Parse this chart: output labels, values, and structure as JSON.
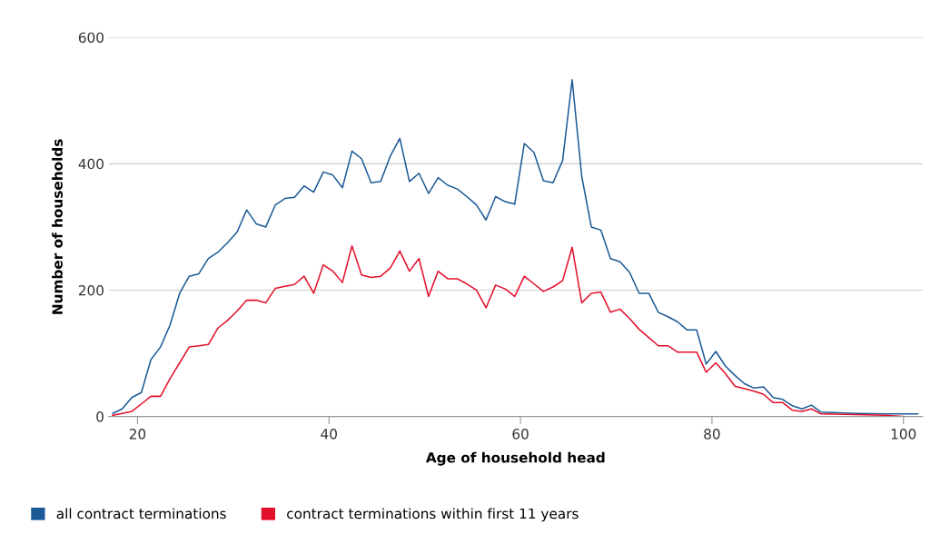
{
  "chart_data": {
    "type": "line",
    "xlabel": "Age of household head",
    "ylabel": "Number of households",
    "xlim": [
      17,
      102
    ],
    "xticks": [
      20,
      40,
      60,
      80,
      100
    ],
    "ylim": [
      0,
      600
    ],
    "yticks": [
      0,
      200,
      400,
      600
    ],
    "grid": "y",
    "legend": "bottom left",
    "marker": "none",
    "line_style": "solid",
    "series": [
      {
        "name": "all contract terminations",
        "color": "#1a5a96",
        "x": [
          17.4,
          18.4,
          19.4,
          20.4,
          21.4,
          22.4,
          23.4,
          24.4,
          25.4,
          26.4,
          27.4,
          28.4,
          29.4,
          30.4,
          31.4,
          32.4,
          33.4,
          34.4,
          35.4,
          36.4,
          37.4,
          38.4,
          39.4,
          40.4,
          41.4,
          42.4,
          43.4,
          44.4,
          45.4,
          46.4,
          47.4,
          48.4,
          49.4,
          50.4,
          51.4,
          52.4,
          53.4,
          54.4,
          55.4,
          56.4,
          57.4,
          58.4,
          59.4,
          60.4,
          61.4,
          62.4,
          63.4,
          64.4,
          65.4,
          66.4,
          67.4,
          68.4,
          69.4,
          70.4,
          71.4,
          72.4,
          73.4,
          74.4,
          75.4,
          76.4,
          77.4,
          78.4,
          79.4,
          80.4,
          81.4,
          82.4,
          83.4,
          84.4,
          85.4,
          86.4,
          87.4,
          88.4,
          89.4,
          90.4,
          91.4,
          95,
          98,
          101.5
        ],
        "values": [
          5,
          12,
          30,
          38,
          90,
          110,
          145,
          195,
          222,
          226,
          250,
          260,
          275,
          292,
          327,
          305,
          300,
          335,
          345,
          347,
          365,
          355,
          387,
          382,
          362,
          420,
          408,
          370,
          372,
          412,
          440,
          372,
          385,
          353,
          378,
          366,
          360,
          348,
          335,
          311,
          348,
          340,
          336,
          432,
          418,
          373,
          370,
          405,
          533,
          380,
          300,
          295,
          250,
          245,
          228,
          195,
          195,
          165,
          158,
          150,
          137,
          137,
          83,
          103,
          80,
          65,
          52,
          45,
          47,
          30,
          27,
          17,
          12,
          18,
          7,
          5,
          4,
          4
        ]
      },
      {
        "name": "contract terminations within first 11 years",
        "color": "#e3102c",
        "x": [
          17.4,
          18.4,
          19.4,
          20.4,
          21.4,
          22.4,
          23.4,
          24.4,
          25.4,
          26.4,
          27.4,
          28.4,
          29.4,
          30.4,
          31.4,
          32.4,
          33.4,
          34.4,
          35.4,
          36.4,
          37.4,
          38.4,
          39.4,
          40.4,
          41.4,
          42.4,
          43.4,
          44.4,
          45.4,
          46.4,
          47.4,
          48.4,
          49.4,
          50.4,
          51.4,
          52.4,
          53.4,
          54.4,
          55.4,
          56.4,
          57.4,
          58.4,
          59.4,
          60.4,
          61.4,
          62.4,
          63.4,
          64.4,
          65.4,
          66.4,
          67.4,
          68.4,
          69.4,
          70.4,
          71.4,
          72.4,
          73.4,
          74.4,
          75.4,
          76.4,
          77.4,
          78.4,
          79.4,
          80.4,
          81.4,
          82.4,
          83.4,
          84.4,
          85.4,
          86.4,
          87.4,
          88.4,
          89.4,
          90.4,
          91.4,
          95,
          98,
          100.2
        ],
        "values": [
          2,
          5,
          8,
          20,
          32,
          32,
          60,
          85,
          110,
          112,
          114,
          140,
          152,
          167,
          184,
          184,
          180,
          203,
          206,
          209,
          222,
          195,
          240,
          230,
          212,
          270,
          224,
          220,
          222,
          235,
          262,
          230,
          250,
          190,
          230,
          218,
          218,
          210,
          200,
          172,
          208,
          202,
          190,
          222,
          210,
          198,
          205,
          215,
          268,
          180,
          195,
          197,
          165,
          170,
          155,
          138,
          125,
          112,
          112,
          102,
          102,
          102,
          70,
          85,
          68,
          48,
          44,
          40,
          35,
          22,
          22,
          10,
          8,
          12,
          4,
          3,
          2,
          0
        ]
      }
    ]
  }
}
